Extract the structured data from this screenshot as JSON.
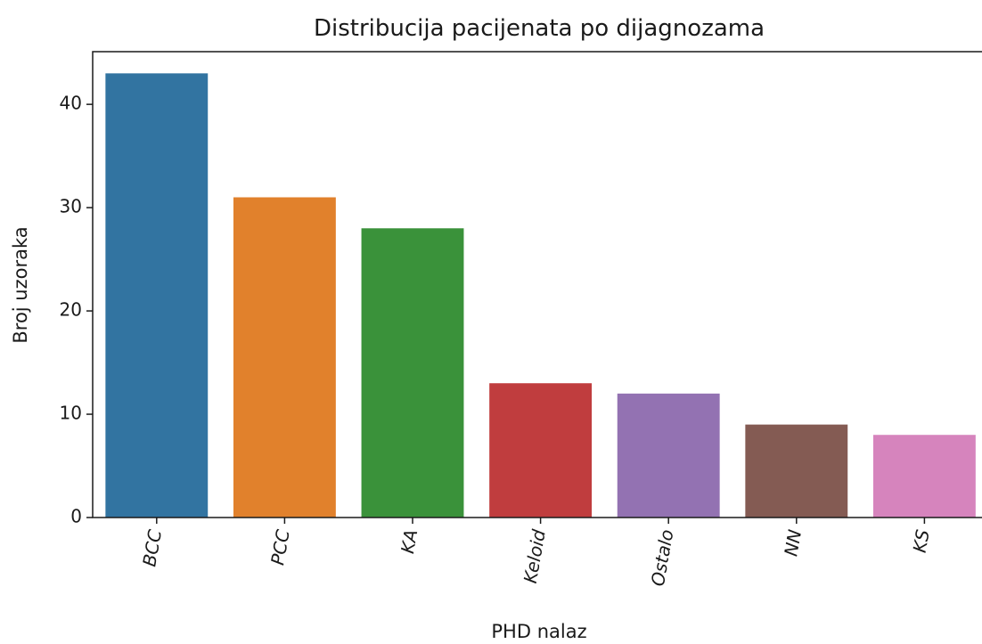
{
  "chart_data": {
    "type": "bar",
    "title": "Distribucija pacijenata po dijagnozama",
    "x_label": "PHD nalaz",
    "y_label": "Broj uzoraka",
    "categories": [
      "BCC",
      "PCC",
      "KA",
      "Keloid",
      "Ostalo",
      "NN",
      "KS"
    ],
    "values": [
      43,
      31,
      28,
      13,
      12,
      9,
      8
    ],
    "colors": [
      "#3274a1",
      "#e1812c",
      "#3a923a",
      "#c03d3e",
      "#9372b2",
      "#845b53",
      "#d684bd"
    ],
    "ylim": [
      0,
      45.1
    ],
    "yticks": [
      0,
      10,
      20,
      30,
      40
    ],
    "grid": false
  }
}
